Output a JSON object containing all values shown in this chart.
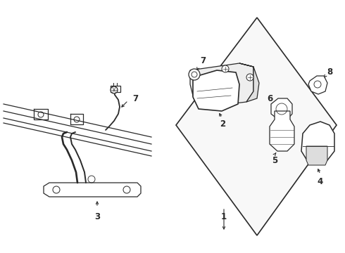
{
  "bg_color": "#ffffff",
  "line_color": "#2a2a2a",
  "fig_width": 4.9,
  "fig_height": 3.6,
  "dpi": 100,
  "label_fontsize": 8.5
}
